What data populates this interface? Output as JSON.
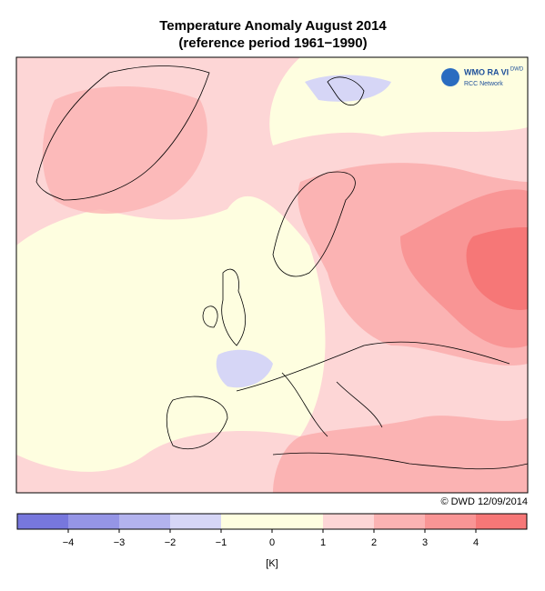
{
  "header": {
    "title": "Temperature Anomaly August 2014",
    "subtitle": "(reference period 1961−1990)"
  },
  "logo": {
    "name": "WMO RA VI",
    "network": "RCC Network",
    "agency": "DWD"
  },
  "credit": "© DWD 12/09/2014",
  "colorbar": {
    "bins": [
      -5,
      -4,
      -3,
      -2,
      -1,
      1,
      2,
      3,
      4,
      5
    ],
    "colors": [
      "#7777dd",
      "#9595e6",
      "#b3b3ee",
      "#d6d6f6",
      "#fefee0",
      "#fdd6d6",
      "#fbb3b3",
      "#f99595",
      "#f67777"
    ],
    "lim": [
      -5,
      5
    ],
    "ticks": [
      {
        "value": -4,
        "label": "−4"
      },
      {
        "value": -3,
        "label": "−3"
      },
      {
        "value": -2,
        "label": "−2"
      },
      {
        "value": -1,
        "label": "−1"
      },
      0,
      1,
      2,
      3,
      4
    ],
    "unit": "[K]"
  }
}
